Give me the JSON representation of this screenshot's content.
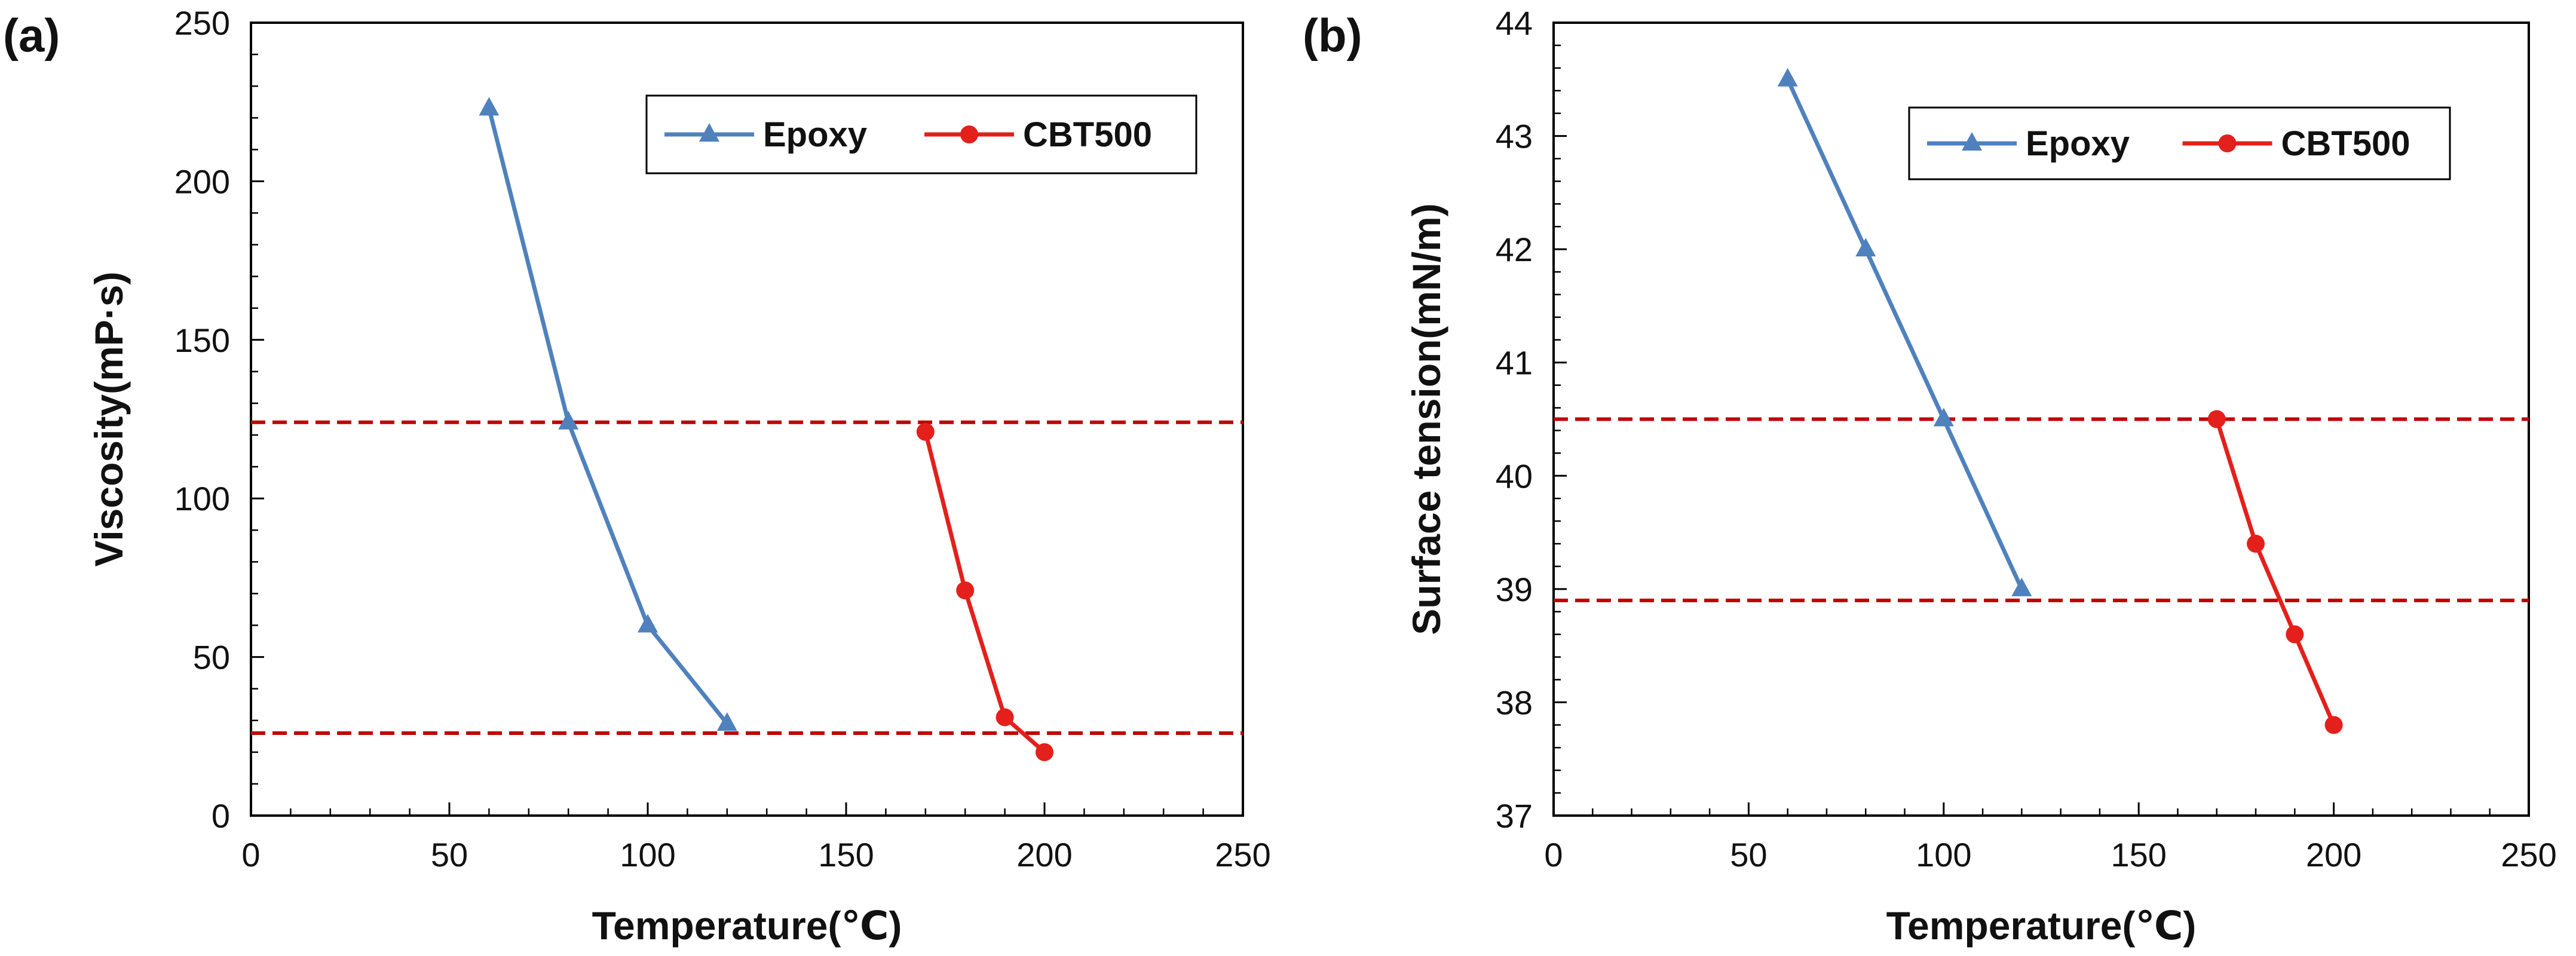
{
  "chart_data": [
    {
      "panel": "(a)",
      "type": "line",
      "xlabel": "Temperature(℃)",
      "ylabel": "Viscosity(mP·s)",
      "xlim": [
        0,
        250
      ],
      "ylim": [
        0,
        250
      ],
      "xticks": [
        0,
        50,
        100,
        150,
        200,
        250
      ],
      "yticks": [
        0,
        50,
        100,
        150,
        200,
        250
      ],
      "legend": "top-right",
      "series": [
        {
          "name": "Epoxy",
          "marker": "triangle",
          "color": "#4f81bd",
          "x": [
            60,
            80,
            100,
            120
          ],
          "y": [
            223,
            124,
            60,
            29
          ]
        },
        {
          "name": "CBT500",
          "marker": "circle",
          "color": "#e3201b",
          "x": [
            170,
            180,
            190,
            200
          ],
          "y": [
            121,
            71,
            31,
            20
          ]
        }
      ],
      "reference_lines": [
        {
          "y": 124,
          "style": "dashed",
          "color": "#c00000"
        },
        {
          "y": 26,
          "style": "dashed",
          "color": "#c00000"
        }
      ]
    },
    {
      "panel": "(b)",
      "type": "line",
      "xlabel": "Temperature(℃)",
      "ylabel": "Surface tension(mN/m)",
      "xlim": [
        0,
        250
      ],
      "ylim": [
        37,
        44
      ],
      "xticks": [
        0,
        50,
        100,
        150,
        200,
        250
      ],
      "yticks": [
        37,
        38,
        39,
        40,
        41,
        42,
        43,
        44
      ],
      "legend": "top-right",
      "series": [
        {
          "name": "Epoxy",
          "marker": "triangle",
          "color": "#4f81bd",
          "x": [
            60,
            80,
            100,
            120
          ],
          "y": [
            43.5,
            42.0,
            40.5,
            39.0
          ]
        },
        {
          "name": "CBT500",
          "marker": "circle",
          "color": "#e3201b",
          "x": [
            170,
            180,
            190,
            200
          ],
          "y": [
            40.5,
            39.4,
            38.6,
            37.8
          ]
        }
      ],
      "reference_lines": [
        {
          "y": 40.5,
          "style": "dashed",
          "color": "#c00000"
        },
        {
          "y": 38.9,
          "style": "dashed",
          "color": "#c00000"
        }
      ]
    }
  ]
}
